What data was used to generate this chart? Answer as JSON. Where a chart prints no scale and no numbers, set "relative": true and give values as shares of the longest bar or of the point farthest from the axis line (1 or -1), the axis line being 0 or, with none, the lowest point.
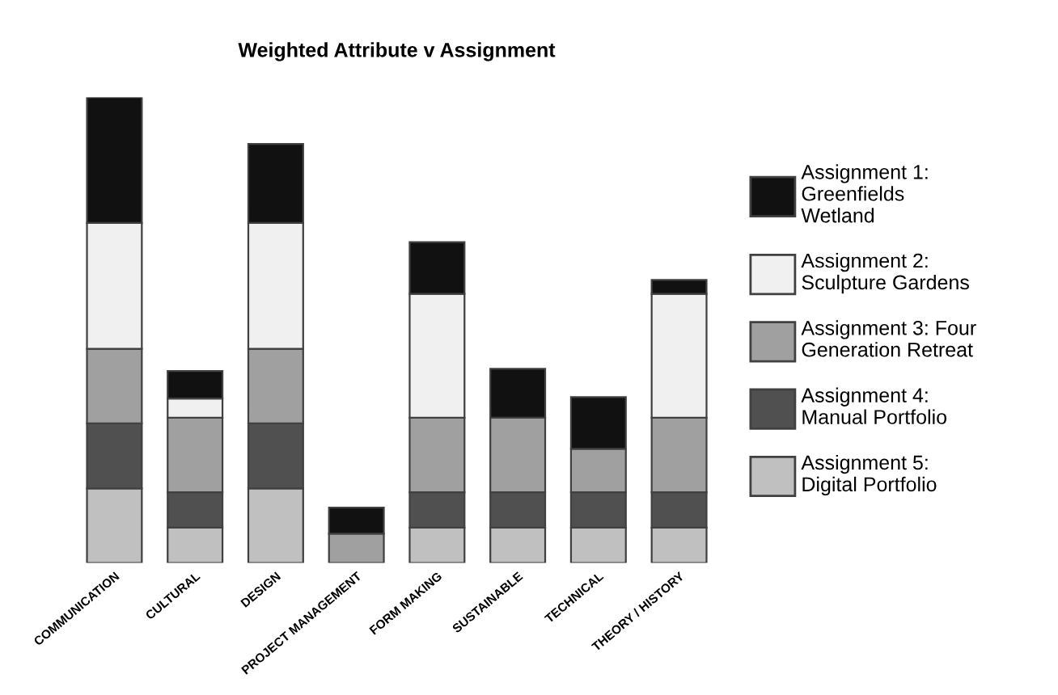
{
  "chart_data": {
    "type": "bar",
    "title": "Weighted Attribute v Assignment",
    "relative": true,
    "stacked": true,
    "legend": "right",
    "grid": false,
    "categories": [
      "COMMUNICATION",
      "CULTURAL",
      "DESIGN",
      "PROJECT MANAGEMENT",
      "FORM MAKING",
      "SUSTAINABLE",
      "TECHNICAL",
      "THEORY / HISTORY"
    ],
    "series": [
      {
        "name": "Assignment 5: Digital Portfolio",
        "color": "#c0c0c0",
        "values": [
          0.16,
          0.076,
          0.16,
          null,
          0.076,
          0.076,
          0.076,
          0.076
        ]
      },
      {
        "name": "Assignment 4: Manual Portfolio",
        "color": "#505050",
        "values": [
          0.14,
          0.076,
          0.14,
          null,
          0.076,
          0.076,
          0.076,
          0.076
        ]
      },
      {
        "name": "Assignment 3: Four Generation Retreat",
        "color": "#a0a0a0",
        "values": [
          0.16,
          0.16,
          0.16,
          0.063,
          0.16,
          0.16,
          0.093,
          0.16
        ]
      },
      {
        "name": "Assignment 2: Sculpture Gardens",
        "color": "#f0f0f0",
        "values": [
          0.27,
          0.041,
          0.27,
          null,
          0.266,
          null,
          null,
          0.266
        ]
      },
      {
        "name": "Assignment 1: Greenfields Wetland",
        "color": "#111111",
        "values": [
          0.27,
          0.059,
          0.17,
          0.056,
          0.111,
          0.105,
          0.111,
          0.03
        ]
      }
    ]
  }
}
